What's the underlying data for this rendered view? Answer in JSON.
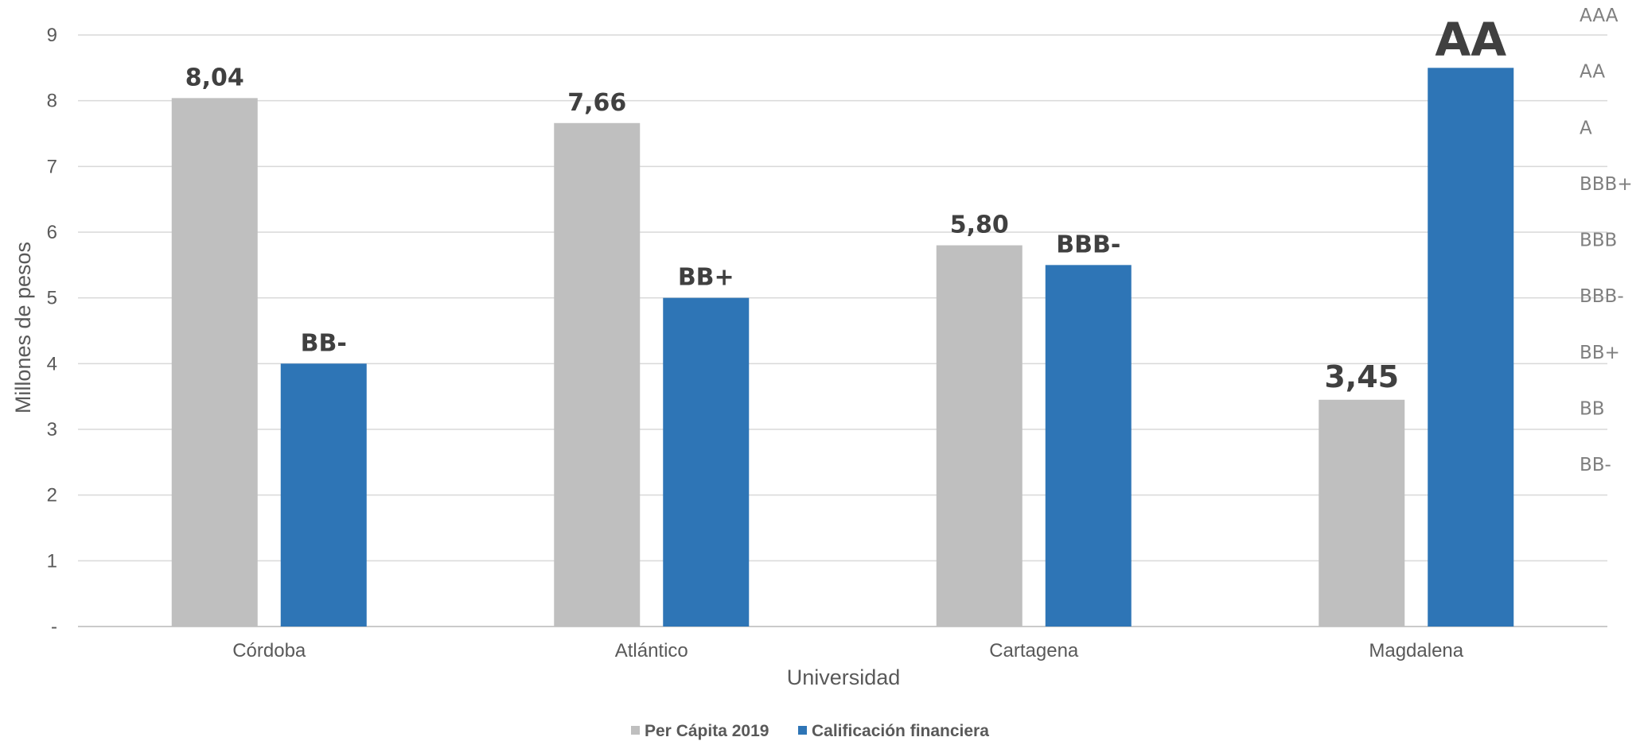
{
  "chart_data": {
    "type": "bar",
    "title": "",
    "xlabel": "Universidad",
    "ylabel": "Millones de pesos",
    "categories": [
      "Córdoba",
      "Atlántico",
      "Cartagena",
      "Magdalena"
    ],
    "ylim": [
      0,
      9
    ],
    "y_ticks": [
      "-",
      "1",
      "2",
      "3",
      "4",
      "5",
      "6",
      "7",
      "8",
      "9"
    ],
    "secondary_axis_labels": [
      "BB-",
      "BB",
      "BB+",
      "BBB-",
      "BBB",
      "BBB+",
      "A",
      "AA",
      "AAA"
    ],
    "grid": true,
    "legend_position": "bottom",
    "series": [
      {
        "name": "Per Cápita 2019",
        "color": "#bfbfbf",
        "values": [
          8.04,
          7.66,
          5.8,
          3.45
        ],
        "data_labels": [
          "8,04",
          "7,66",
          "5,80",
          "3,45"
        ]
      },
      {
        "name": "Calificación financiera",
        "color": "#2e75b6",
        "values": [
          4.0,
          5.0,
          5.5,
          8.5
        ],
        "data_labels": [
          "BB-",
          "BB+",
          "BBB-",
          "AA"
        ]
      }
    ]
  }
}
